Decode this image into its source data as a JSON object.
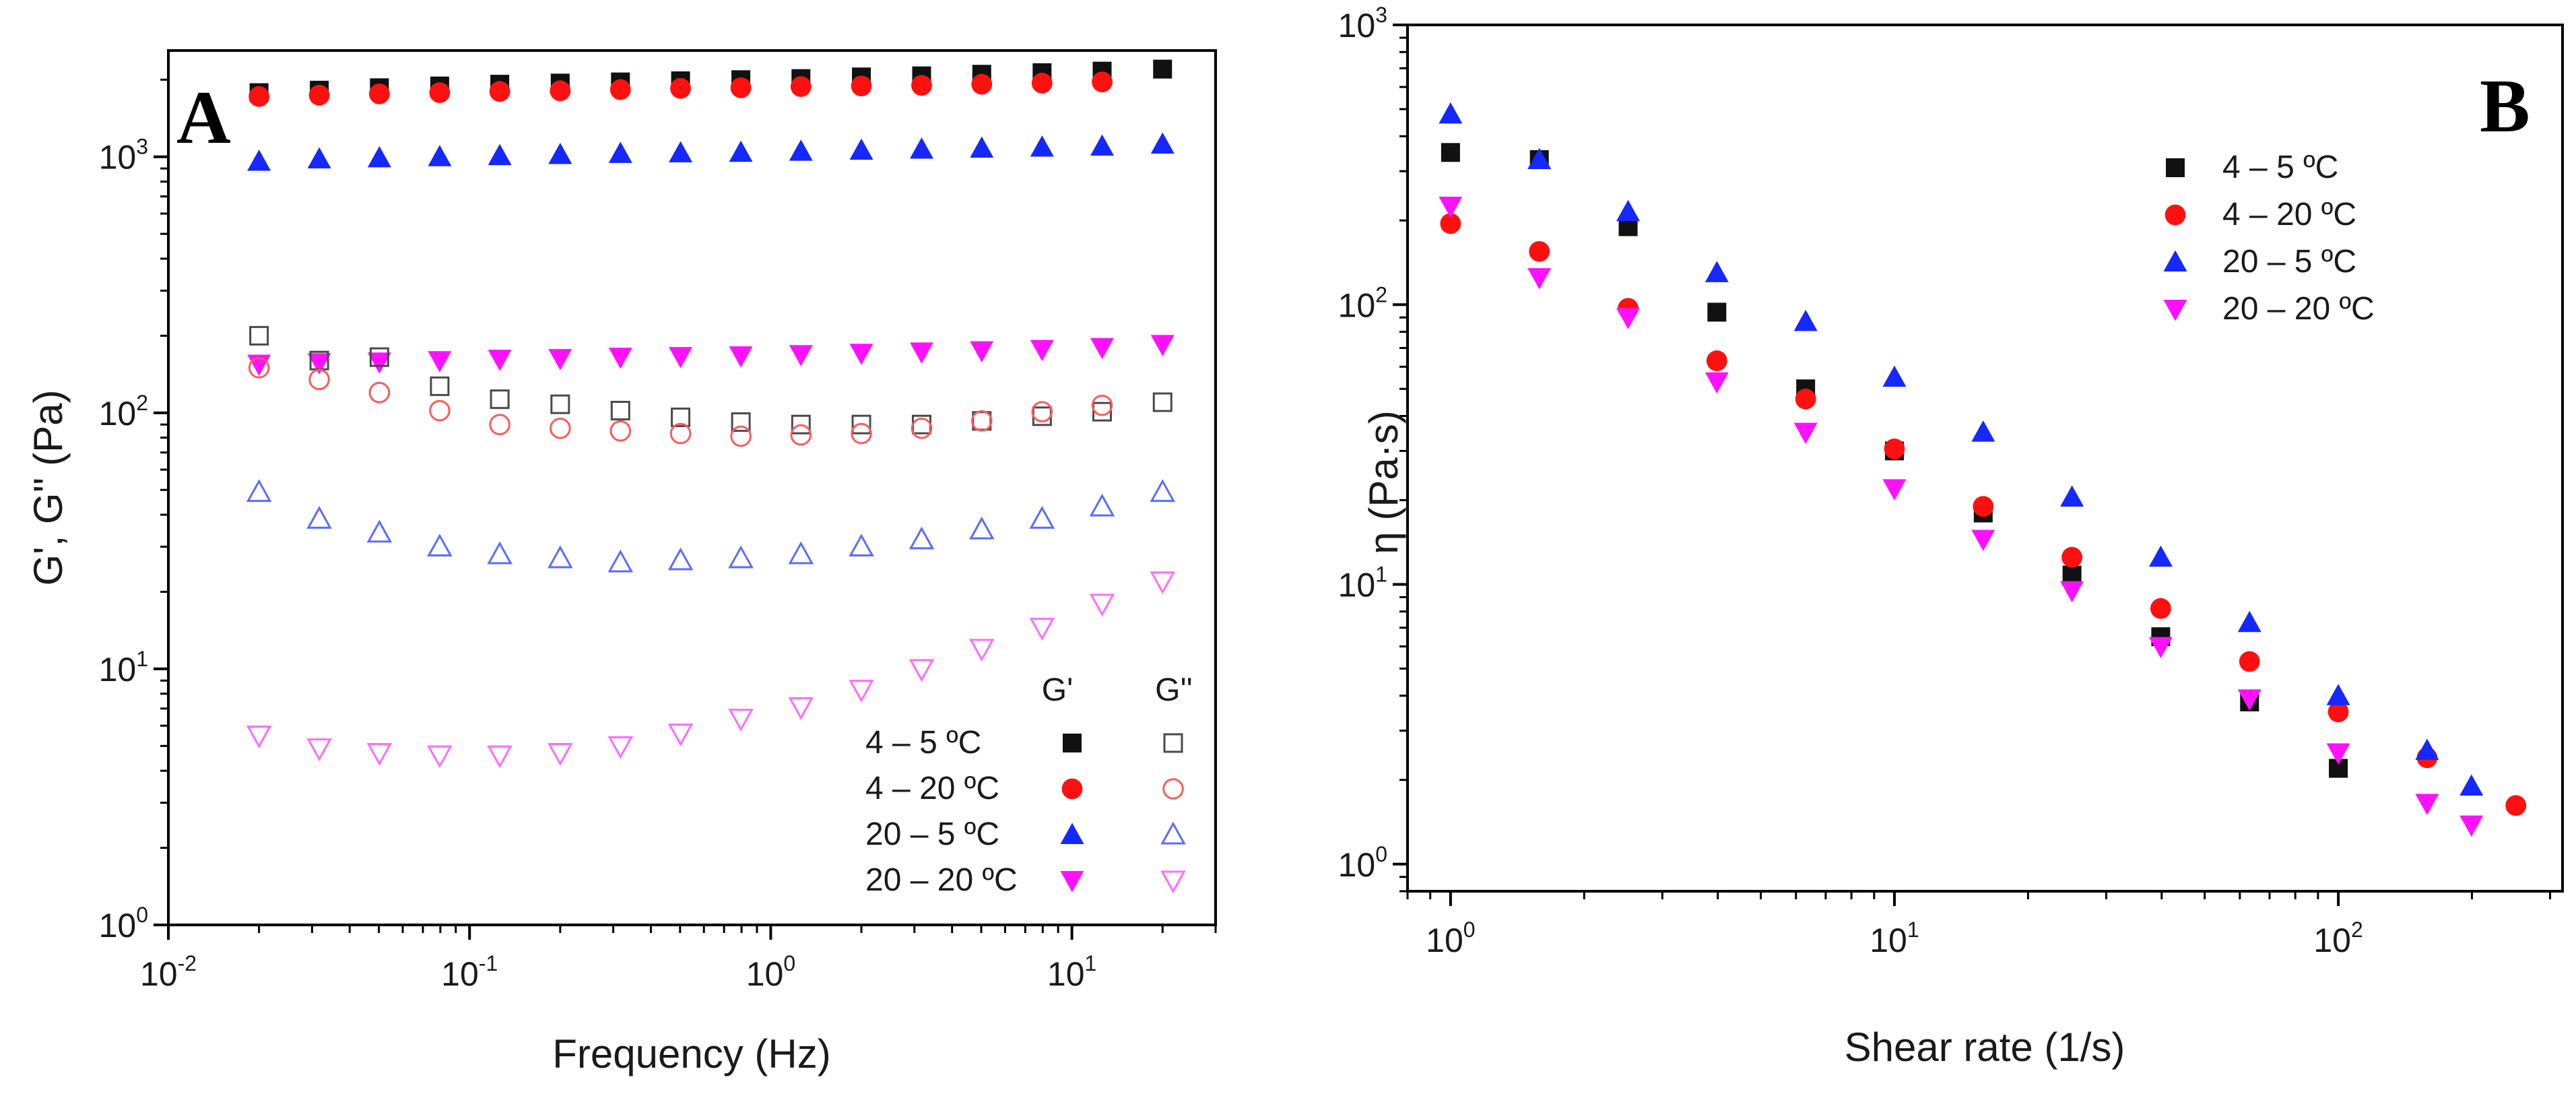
{
  "colors": {
    "black": "#111111",
    "red": "#ff1010",
    "blue": "#1428ff",
    "magenta": "#ff10ff",
    "open_black": "#4a4a4a",
    "open_red": "#ff5a5a",
    "open_blue": "#5a6cff",
    "open_magenta": "#ff6cff"
  },
  "chart_data": [
    {
      "panel": "A",
      "type": "scatter",
      "xscale": "log",
      "yscale": "log",
      "xlabel": "Frequency (Hz)",
      "ylabel": "G', G'' (Pa)",
      "xlim": [
        0.01,
        30
      ],
      "ylim": [
        1,
        2600
      ],
      "xticks": [
        {
          "base": "10",
          "exp": "-2",
          "value": 0.01
        },
        {
          "base": "10",
          "exp": "-1",
          "value": 0.1
        },
        {
          "base": "10",
          "exp": "0",
          "value": 1
        },
        {
          "base": "10",
          "exp": "1",
          "value": 10
        }
      ],
      "yticks": [
        {
          "base": "10",
          "exp": "0",
          "value": 1
        },
        {
          "base": "10",
          "exp": "1",
          "value": 10
        },
        {
          "base": "10",
          "exp": "2",
          "value": 100
        },
        {
          "base": "10",
          "exp": "3",
          "value": 1000
        }
      ],
      "legend": {
        "position": "bottom-right",
        "column_headers": [
          "G'",
          "G''"
        ],
        "entries": [
          "4 – 5 ºC",
          "4 – 20 ºC",
          "20 – 5 ºC",
          "20 – 20 ºC"
        ]
      },
      "x": [
        0.02,
        0.0317,
        0.0502,
        0.0796,
        0.126,
        0.2,
        0.317,
        0.502,
        0.796,
        1.26,
        2,
        3.17,
        5.02,
        7.96,
        12.6,
        20
      ],
      "series": [
        {
          "name": "4 – 5 ºC G'",
          "modulus": "G'",
          "marker": "square",
          "filled": true,
          "color": "black",
          "values": [
            1780,
            1820,
            1860,
            1890,
            1920,
            1940,
            1960,
            1980,
            2000,
            2020,
            2050,
            2070,
            2100,
            2130,
            2160,
            2200
          ]
        },
        {
          "name": "4 – 20 ºC G'",
          "modulus": "G'",
          "marker": "circle",
          "filled": true,
          "color": "red",
          "values": [
            1720,
            1740,
            1760,
            1780,
            1800,
            1810,
            1830,
            1850,
            1860,
            1880,
            1890,
            1900,
            1920,
            1940,
            1960,
            null
          ]
        },
        {
          "name": "20 – 5 ºC G'",
          "modulus": "G'",
          "marker": "triangle-up",
          "filled": true,
          "color": "blue",
          "values": [
            960,
            980,
            990,
            1000,
            1010,
            1020,
            1030,
            1035,
            1040,
            1050,
            1060,
            1070,
            1080,
            1090,
            1100,
            1120
          ]
        },
        {
          "name": "20 – 20 ºC G'",
          "modulus": "G'",
          "marker": "triangle-down",
          "filled": true,
          "color": "magenta",
          "values": [
            155,
            157,
            158,
            160,
            162,
            163,
            165,
            166,
            167,
            169,
            171,
            173,
            175,
            177,
            180,
            185
          ]
        },
        {
          "name": "4 – 5 ºC G''",
          "modulus": "G''",
          "marker": "square",
          "filled": false,
          "color": "open_black",
          "values": [
            200,
            160,
            165,
            127,
            113,
            108,
            102,
            96,
            92,
            90,
            90,
            90,
            93,
            97,
            101,
            110
          ]
        },
        {
          "name": "4 – 20 ºC G''",
          "modulus": "G''",
          "marker": "circle",
          "filled": false,
          "color": "open_red",
          "values": [
            150,
            135,
            120,
            102,
            90,
            87,
            85,
            83,
            81,
            82,
            83,
            87,
            93,
            101,
            107,
            null
          ]
        },
        {
          "name": "20 – 5 ºC G''",
          "modulus": "G''",
          "marker": "triangle-up",
          "filled": false,
          "color": "open_blue",
          "values": [
            49,
            38.5,
            34,
            30,
            28,
            27,
            26,
            26.5,
            27,
            28,
            30,
            32,
            35,
            38.5,
            43,
            49
          ]
        },
        {
          "name": "20 – 20 ºC G''",
          "modulus": "G''",
          "marker": "triangle-down",
          "filled": false,
          "color": "open_magenta",
          "values": [
            5.5,
            4.9,
            4.7,
            4.6,
            4.6,
            4.7,
            5.0,
            5.6,
            6.4,
            7.1,
            8.3,
            10,
            12,
            14.5,
            18,
            22
          ]
        }
      ]
    },
    {
      "panel": "B",
      "type": "scatter",
      "xscale": "log",
      "yscale": "log",
      "xlabel": "Shear rate (1/s)",
      "ylabel": "η  (Pa·s)",
      "xlim": [
        0.8,
        320
      ],
      "ylim": [
        0.8,
        1000
      ],
      "xticks": [
        {
          "base": "10",
          "exp": "0",
          "value": 1
        },
        {
          "base": "10",
          "exp": "1",
          "value": 10
        },
        {
          "base": "10",
          "exp": "2",
          "value": 100
        }
      ],
      "yticks": [
        {
          "base": "10",
          "exp": "0",
          "value": 1
        },
        {
          "base": "10",
          "exp": "1",
          "value": 10
        },
        {
          "base": "10",
          "exp": "2",
          "value": 100
        },
        {
          "base": "10",
          "exp": "3",
          "value": 1000
        }
      ],
      "legend": {
        "position": "top-right",
        "entries": [
          "4 – 5 ºC",
          "4 – 20 ºC",
          "20 – 5 ºC",
          "20 – 20 ºC"
        ]
      },
      "x": [
        1,
        1.585,
        2.512,
        3.981,
        6.31,
        10,
        15.85,
        25.12,
        39.81,
        63.1,
        100,
        158.5,
        199.5,
        251.2
      ],
      "series": [
        {
          "name": "4 – 5 ºC",
          "marker": "square",
          "filled": true,
          "color": "black",
          "values": [
            350,
            330,
            190,
            94,
            50,
            30,
            18,
            10.8,
            6.5,
            3.8,
            2.2,
            null,
            null,
            null
          ]
        },
        {
          "name": "4 – 20 ºC",
          "marker": "circle",
          "filled": true,
          "color": "red",
          "values": [
            195,
            155,
            97,
            63,
            46,
            30.5,
            19,
            12.5,
            8.2,
            5.3,
            3.5,
            2.4,
            null,
            1.62
          ]
        },
        {
          "name": "20 – 5 ºC",
          "marker": "triangle-up",
          "filled": true,
          "color": "blue",
          "values": [
            480,
            330,
            215,
            130,
            87,
            55,
            35,
            20.5,
            12.5,
            7.3,
            4.0,
            2.55,
            1.9,
            null
          ]
        },
        {
          "name": "20 – 20 ºC",
          "marker": "triangle-down",
          "filled": true,
          "color": "magenta",
          "values": [
            225,
            125,
            90,
            53,
            35,
            22,
            14.5,
            9.5,
            6,
            3.9,
            2.5,
            1.65,
            1.38,
            null
          ]
        }
      ]
    }
  ]
}
